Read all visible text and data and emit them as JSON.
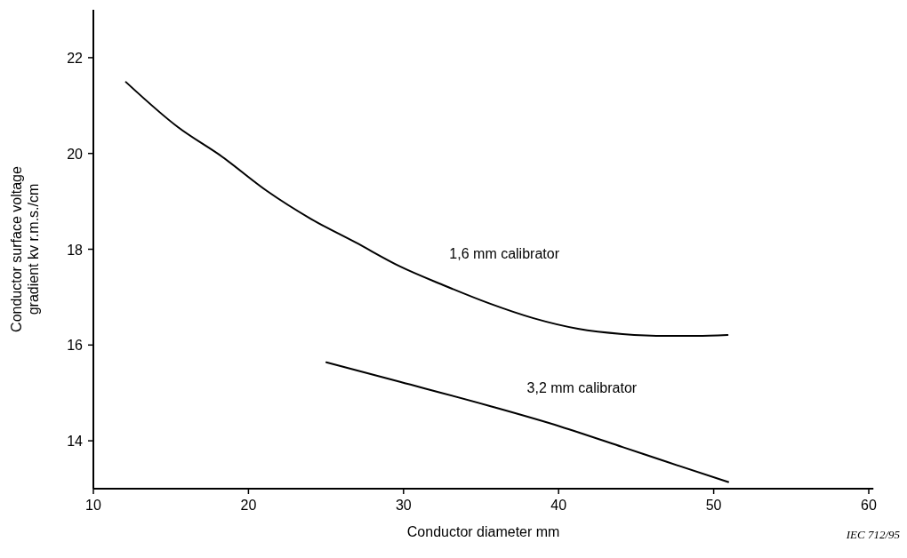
{
  "chart_data": {
    "type": "line",
    "xlabel": "Conductor diameter mm",
    "ylabel": "Conductor surface voltage\ngradient kv r.m.s./cm",
    "xlim": [
      10,
      60.3
    ],
    "ylim": [
      13,
      23
    ],
    "xticks": [
      10,
      20,
      30,
      40,
      50,
      60
    ],
    "yticks": [
      14,
      16,
      18,
      20,
      22
    ],
    "grid": false,
    "marker": "none",
    "line_style": "solid",
    "series": [
      {
        "name": "1,6 mm calibrator",
        "color": "#000000",
        "x": [
          12.1,
          15.45,
          18.31,
          21.18,
          24.05,
          26.92,
          29.78,
          32.65,
          35.52,
          38.38,
          41.25,
          44.12,
          46.98,
          48.9,
          50.9
        ],
        "values": [
          21.49,
          20.55,
          19.93,
          19.22,
          18.63,
          18.14,
          17.64,
          17.24,
          16.87,
          16.56,
          16.34,
          16.23,
          16.19,
          16.19,
          16.21
        ]
      },
      {
        "name": "3,2 mm calibrator",
        "color": "#000000",
        "x": [
          25.02,
          29.78,
          35.52,
          40.1,
          44.12,
          46.98,
          50.94
        ],
        "values": [
          15.64,
          15.23,
          14.73,
          14.3,
          13.87,
          13.56,
          13.14
        ]
      }
    ],
    "annotations": [
      "IEC 712/95"
    ]
  }
}
